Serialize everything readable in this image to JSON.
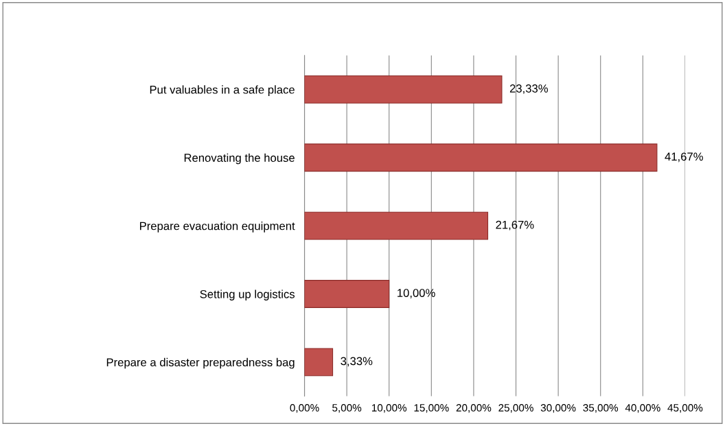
{
  "chart_data": {
    "type": "bar",
    "orientation": "horizontal",
    "categories": [
      "Put valuables in a safe place",
      "Renovating the house",
      "Prepare evacuation equipment",
      "Setting up logistics",
      "Prepare a disaster preparedness bag"
    ],
    "values": [
      23.33,
      41.67,
      21.67,
      10.0,
      3.33
    ],
    "value_labels": [
      "23,33%",
      "41,67%",
      "21,67%",
      "10,00%",
      "3,33%"
    ],
    "color": "#c0504d",
    "xlim": [
      0,
      45
    ],
    "xticks": [
      {
        "value": 0,
        "label": "0,00%"
      },
      {
        "value": 5,
        "label": "5,00%"
      },
      {
        "value": 10,
        "label": "10,00%"
      },
      {
        "value": 15,
        "label": "15,00%"
      },
      {
        "value": 20,
        "label": "20,00%"
      },
      {
        "value": 25,
        "label": "25,00%"
      },
      {
        "value": 30,
        "label": "30,00%"
      },
      {
        "value": 35,
        "label": "35,00%"
      },
      {
        "value": 40,
        "label": "40,00%"
      },
      {
        "value": 45,
        "label": "45,00%"
      }
    ],
    "grid": "x",
    "legend": false
  }
}
